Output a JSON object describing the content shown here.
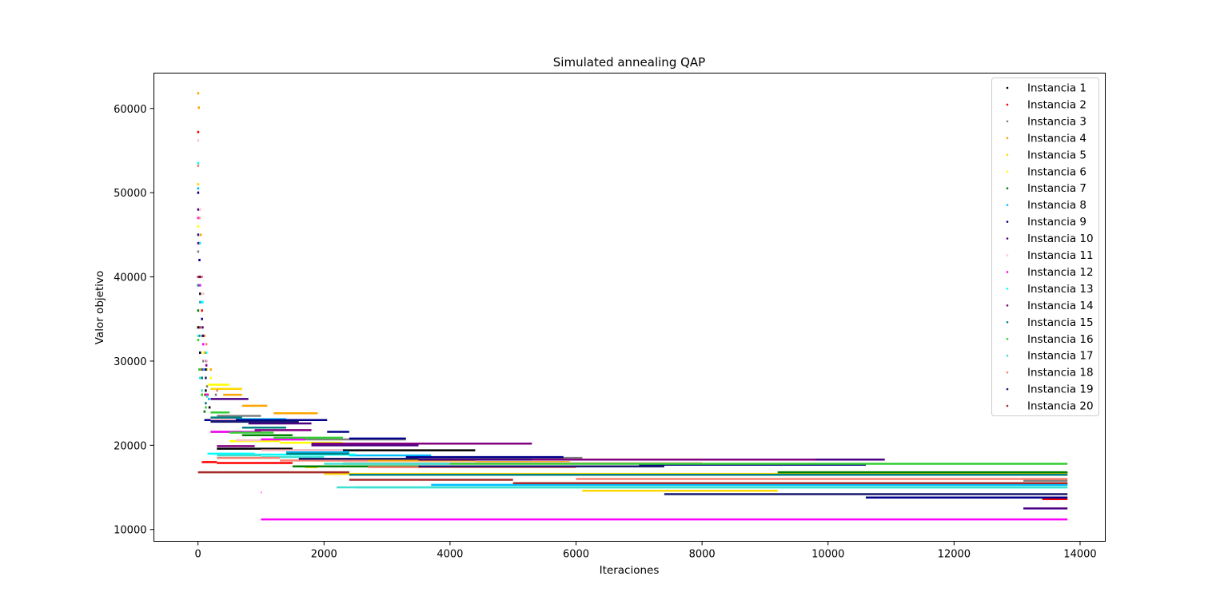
{
  "chart_data": {
    "type": "scatter",
    "title": "Simulated annealing QAP",
    "xlabel": "Iteraciones",
    "ylabel": "Valor objetivo",
    "xlim": [
      -700,
      14400
    ],
    "ylim": [
      8600,
      64200
    ],
    "xticks": [
      0,
      2000,
      4000,
      6000,
      8000,
      10000,
      12000,
      14000
    ],
    "yticks": [
      10000,
      20000,
      30000,
      40000,
      50000,
      60000
    ],
    "grid": false,
    "legend_position": "top-right",
    "marker": "point",
    "series": [
      {
        "name": "Instancia 1",
        "color": "#000000",
        "initial": [
          [
            0,
            34000
          ],
          [
            30,
            31000
          ],
          [
            60,
            28000
          ],
          [
            120,
            26500
          ],
          [
            180,
            24500
          ]
        ],
        "plateaus": [
          [
            300,
            1500,
            19600
          ],
          [
            1500,
            4400,
            19400
          ],
          [
            10550,
            13800,
            16700
          ]
        ]
      },
      {
        "name": "Instancia 2",
        "color": "#ff0000",
        "initial": [
          [
            0,
            57200
          ],
          [
            20,
            44000
          ],
          [
            60,
            36000
          ],
          [
            100,
            31000
          ],
          [
            150,
            26000
          ]
        ],
        "plateaus": [
          [
            60,
            300,
            18000
          ],
          [
            300,
            1500,
            17900
          ],
          [
            10000,
            13800,
            15400
          ],
          [
            13400,
            13800,
            13600
          ]
        ]
      },
      {
        "name": "Instancia 3",
        "color": "#808080",
        "initial": [
          [
            0,
            43000
          ],
          [
            30,
            37000
          ],
          [
            80,
            30000
          ],
          [
            140,
            27000
          ],
          [
            280,
            26000
          ]
        ],
        "plateaus": [
          [
            300,
            1000,
            23500
          ],
          [
            1000,
            3300,
            20700
          ],
          [
            3300,
            6100,
            18500
          ],
          [
            13100,
            13800,
            15800
          ]
        ]
      },
      {
        "name": "Instancia 4",
        "color": "#ffa500",
        "initial": [
          [
            0,
            61800
          ],
          [
            10,
            60100
          ],
          [
            40,
            45000
          ],
          [
            100,
            33000
          ],
          [
            200,
            29000
          ]
        ],
        "plateaus": [
          [
            400,
            700,
            26000
          ],
          [
            700,
            1100,
            24700
          ],
          [
            1200,
            1900,
            23800
          ],
          [
            1900,
            4400,
            18200
          ],
          [
            4400,
            5900,
            18000
          ]
        ]
      },
      {
        "name": "Instancia 5",
        "color": "#ffd700",
        "initial": [
          [
            0,
            51000
          ],
          [
            30,
            40000
          ],
          [
            70,
            33000
          ],
          [
            140,
            29000
          ]
        ],
        "plateaus": [
          [
            200,
            700,
            26700
          ],
          [
            1700,
            1900,
            17400
          ],
          [
            2000,
            13800,
            16600
          ],
          [
            6100,
            9200,
            14600
          ]
        ]
      },
      {
        "name": "Instancia 6",
        "color": "#ffff00",
        "initial": [
          [
            0,
            46000
          ],
          [
            40,
            38000
          ],
          [
            90,
            31000
          ],
          [
            200,
            28000
          ]
        ],
        "plateaus": [
          [
            150,
            500,
            27200
          ],
          [
            500,
            1300,
            20500
          ],
          [
            1300,
            2300,
            20300
          ],
          [
            2300,
            3800,
            20200
          ]
        ]
      },
      {
        "name": "Instancia 7",
        "color": "#008000",
        "initial": [
          [
            0,
            36000
          ],
          [
            20,
            29000
          ],
          [
            60,
            26000
          ],
          [
            100,
            24000
          ]
        ],
        "plateaus": [
          [
            200,
            700,
            21600
          ],
          [
            700,
            1500,
            21200
          ],
          [
            1500,
            3500,
            17500
          ],
          [
            9200,
            13800,
            16800
          ]
        ]
      },
      {
        "name": "Instancia 8",
        "color": "#00bfff",
        "initial": [
          [
            0,
            50500
          ],
          [
            40,
            37000
          ],
          [
            90,
            29000
          ],
          [
            170,
            25500
          ]
        ],
        "plateaus": [
          [
            200,
            1400,
            23100
          ],
          [
            1400,
            2400,
            19200
          ],
          [
            2400,
            3700,
            18800
          ],
          [
            3700,
            13800,
            15300
          ]
        ]
      },
      {
        "name": "Instancia 9",
        "color": "#00008b",
        "initial": [
          [
            0,
            50000
          ],
          [
            20,
            42000
          ],
          [
            60,
            35000
          ],
          [
            120,
            29000
          ]
        ],
        "plateaus": [
          [
            100,
            2050,
            23000
          ],
          [
            2050,
            2400,
            21600
          ],
          [
            2400,
            3300,
            20800
          ],
          [
            3300,
            5800,
            18600
          ],
          [
            7000,
            10600,
            17700
          ],
          [
            10600,
            13800,
            13800
          ]
        ]
      },
      {
        "name": "Instancia 10",
        "color": "#4b0082",
        "initial": [
          [
            0,
            48000
          ],
          [
            30,
            40000
          ],
          [
            70,
            34000
          ],
          [
            130,
            30000
          ]
        ],
        "plateaus": [
          [
            200,
            800,
            25500
          ],
          [
            800,
            1800,
            22600
          ],
          [
            1800,
            3500,
            20000
          ],
          [
            3500,
            10900,
            18300
          ],
          [
            13100,
            13800,
            12500
          ]
        ]
      },
      {
        "name": "Instancia 11",
        "color": "#ffc0cb",
        "initial": [
          [
            0,
            56200
          ],
          [
            30,
            48000
          ],
          [
            80,
            38000
          ],
          [
            140,
            30000
          ]
        ],
        "plateaus": [
          [
            200,
            600,
            23100
          ],
          [
            600,
            1000,
            20600
          ],
          [
            1000,
            2300,
            19400
          ],
          [
            2300,
            8000,
            17900
          ]
        ]
      },
      {
        "name": "Instancia 12",
        "color": "#ff00ff",
        "initial": [
          [
            0,
            47000
          ],
          [
            30,
            39000
          ],
          [
            80,
            32000
          ],
          [
            140,
            26000
          ]
        ],
        "plateaus": [
          [
            200,
            1000,
            21600
          ],
          [
            1000,
            1700,
            20700
          ],
          [
            1000,
            13800,
            11200
          ],
          [
            1000,
            1010,
            14400
          ]
        ]
      },
      {
        "name": "Instancia 13",
        "color": "#00ffff",
        "initial": [
          [
            0,
            53500
          ],
          [
            30,
            44000
          ],
          [
            70,
            37000
          ],
          [
            130,
            31000
          ]
        ],
        "plateaus": [
          [
            150,
            900,
            19000
          ],
          [
            900,
            2500,
            18900
          ],
          [
            2500,
            13800,
            15000
          ]
        ]
      },
      {
        "name": "Instancia 14",
        "color": "#800080",
        "initial": [
          [
            0,
            44000
          ],
          [
            30,
            38000
          ],
          [
            80,
            33000
          ],
          [
            130,
            29500
          ]
        ],
        "plateaus": [
          [
            300,
            900,
            19900
          ],
          [
            900,
            1800,
            21800
          ],
          [
            1800,
            5300,
            20200
          ],
          [
            5300,
            9800,
            18300
          ]
        ]
      },
      {
        "name": "Instancia 15",
        "color": "#008080",
        "initial": [
          [
            0,
            39000
          ],
          [
            20,
            33000
          ],
          [
            60,
            28000
          ],
          [
            120,
            25000
          ]
        ],
        "plateaus": [
          [
            200,
            700,
            23300
          ],
          [
            700,
            1400,
            22100
          ],
          [
            1400,
            2400,
            19000
          ],
          [
            2400,
            13800,
            16500
          ]
        ]
      },
      {
        "name": "Instancia 16",
        "color": "#32cd32",
        "initial": [
          [
            0,
            32500
          ],
          [
            20,
            29000
          ],
          [
            60,
            26000
          ],
          [
            120,
            24500
          ]
        ],
        "plateaus": [
          [
            200,
            500,
            23900
          ],
          [
            500,
            1200,
            21500
          ],
          [
            1200,
            2300,
            20900
          ],
          [
            2300,
            13800,
            17800
          ]
        ]
      },
      {
        "name": "Instancia 17",
        "color": "#40e0d0",
        "initial": [
          [
            0,
            33000
          ],
          [
            30,
            28000
          ],
          [
            60,
            26500
          ],
          [
            140,
            25800
          ]
        ],
        "plateaus": [
          [
            300,
            1000,
            18800
          ],
          [
            1000,
            2000,
            18600
          ],
          [
            2000,
            4000,
            17800
          ],
          [
            2200,
            13800,
            15000
          ]
        ]
      },
      {
        "name": "Instancia 18",
        "color": "#fa8072",
        "initial": [
          [
            0,
            53200
          ],
          [
            20,
            47000
          ],
          [
            60,
            40000
          ],
          [
            130,
            32000
          ],
          [
            300,
            26500
          ]
        ],
        "plateaus": [
          [
            300,
            1300,
            18500
          ],
          [
            1300,
            2700,
            18200
          ],
          [
            2700,
            6000,
            17400
          ],
          [
            6000,
            13800,
            16000
          ]
        ]
      },
      {
        "name": "Instancia 19",
        "color": "#191970",
        "initial": [
          [
            0,
            45000
          ],
          [
            30,
            38000
          ],
          [
            70,
            33000
          ],
          [
            120,
            28000
          ]
        ],
        "plateaus": [
          [
            200,
            1600,
            22800
          ],
          [
            1600,
            3500,
            18400
          ],
          [
            3500,
            7400,
            17500
          ],
          [
            7400,
            13800,
            14200
          ]
        ]
      },
      {
        "name": "Instancia 20",
        "color": "#a52a2a",
        "initial": [
          [
            0,
            40000
          ],
          [
            30,
            34000
          ],
          [
            60,
            29000
          ],
          [
            110,
            26000
          ]
        ],
        "plateaus": [
          [
            0,
            2400,
            16800
          ],
          [
            2400,
            5000,
            15900
          ],
          [
            5000,
            13800,
            15500
          ]
        ]
      }
    ]
  }
}
